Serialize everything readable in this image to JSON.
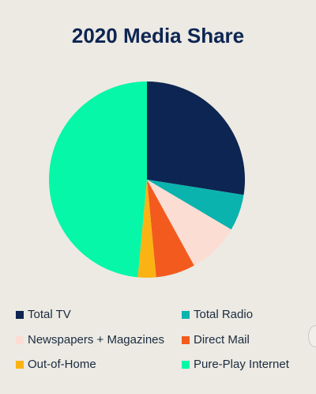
{
  "chart_data": {
    "type": "pie",
    "title": "2020 Media Share",
    "start_angle_deg": 0,
    "direction": "clockwise",
    "slices": [
      {
        "label": "Total TV",
        "value": 27.5,
        "color": "#0D2552"
      },
      {
        "label": "Total Radio",
        "value": 6.0,
        "color": "#0BB3AE"
      },
      {
        "label": "Newspapers + Magazines",
        "value": 8.5,
        "color": "#FCDDD4"
      },
      {
        "label": "Direct Mail",
        "value": 6.5,
        "color": "#F35B1E"
      },
      {
        "label": "Out-of-Home",
        "value": 3.0,
        "color": "#FBB314"
      },
      {
        "label": "Pure-Play Internet",
        "value": 48.5,
        "color": "#06F7A8"
      }
    ],
    "legend_position": "bottom"
  }
}
